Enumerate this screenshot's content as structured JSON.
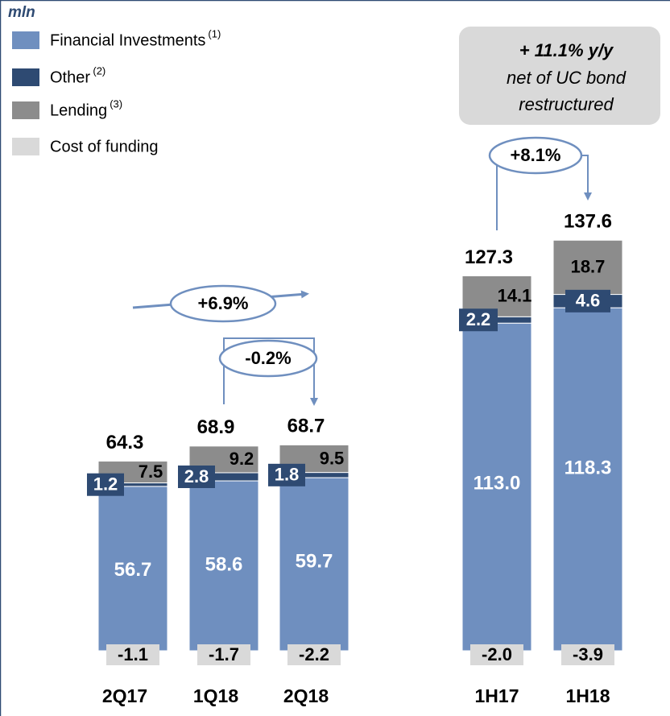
{
  "chart_data": {
    "type": "stacked_bar",
    "unit_label": "mln",
    "categories": [
      "2Q17",
      "1Q18",
      "2Q18",
      "1H17",
      "1H18"
    ],
    "series": [
      {
        "name": "Financial Investments",
        "note": "(1)",
        "color": "#6f8fbf",
        "values": [
          56.7,
          58.6,
          59.7,
          113.0,
          118.3
        ],
        "value_labels": [
          "56.7",
          "58.6",
          "59.7",
          "113.0",
          "118.3"
        ]
      },
      {
        "name": "Other",
        "note": "(2)",
        "color": "#2e4a72",
        "values": [
          1.2,
          2.8,
          1.8,
          2.2,
          4.6
        ]
      },
      {
        "name": "Lending",
        "note": "(3)",
        "color": "#8c8c8c",
        "values": [
          7.5,
          9.2,
          9.5,
          14.1,
          18.7
        ]
      },
      {
        "name": "Cost of funding",
        "color": "#d9d9d9",
        "values": [
          -1.1,
          -1.7,
          -2.2,
          -2.0,
          -3.9
        ],
        "value_labels": [
          "-1.1",
          "-1.7",
          "-2.2",
          "-2.0",
          "-3.9"
        ]
      }
    ],
    "totals": [
      64.3,
      68.9,
      68.7,
      127.3,
      137.6
    ],
    "annotations": {
      "change_2q": "+6.9%",
      "change_q": "-0.2%",
      "change_h": "+8.1%",
      "callout": [
        "+ 11.1% y/y",
        "net of UC bond",
        "restructured"
      ]
    }
  }
}
